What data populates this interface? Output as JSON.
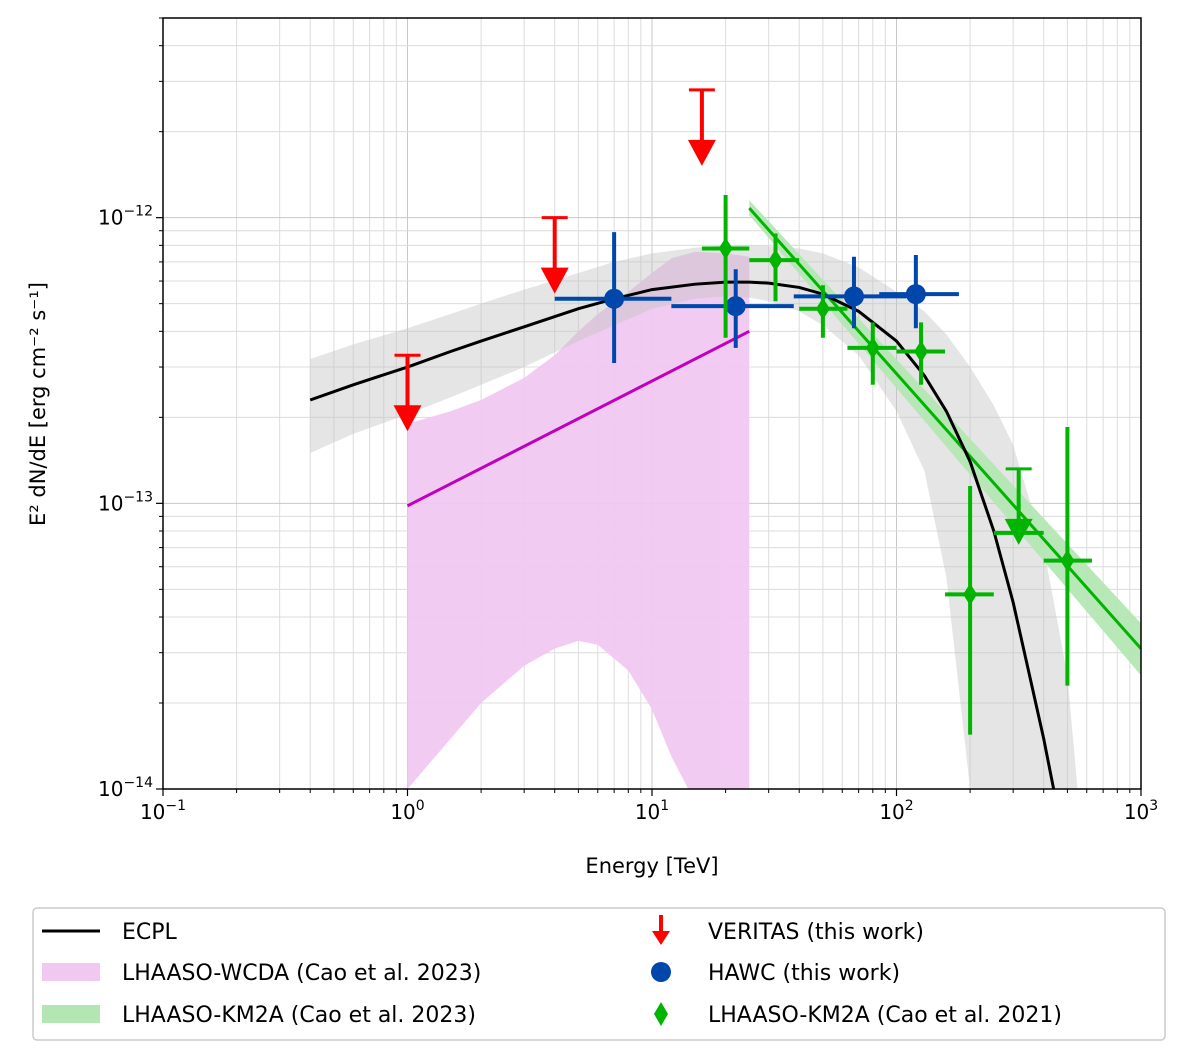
{
  "chart_data": {
    "type": "scatter",
    "title": "",
    "xlabel": "Energy [TeV]",
    "ylabel_text": "E² dN/dE [erg cm⁻² s⁻¹]",
    "xscale": "log",
    "yscale": "log",
    "xlim": [
      0.1,
      1000
    ],
    "ylim": [
      1e-14,
      5e-12
    ],
    "grid": true,
    "x_ticks": [
      {
        "value": 0.1,
        "base": "10",
        "exp": "−1"
      },
      {
        "value": 1,
        "base": "10",
        "exp": "0"
      },
      {
        "value": 10,
        "base": "10",
        "exp": "1"
      },
      {
        "value": 100,
        "base": "10",
        "exp": "2"
      },
      {
        "value": 1000,
        "base": "10",
        "exp": "3"
      }
    ],
    "y_ticks": [
      {
        "value": 1e-14,
        "base": "10",
        "exp": "−14"
      },
      {
        "value": 1e-13,
        "base": "10",
        "exp": "−13"
      },
      {
        "value": 1e-12,
        "base": "10",
        "exp": "−12"
      }
    ],
    "legend_location": "below",
    "series": [
      {
        "id": "ecpl",
        "name": "ECPL",
        "kind": "line",
        "color": "#000000",
        "x": [
          0.4,
          0.6,
          1,
          1.5,
          2,
          3,
          5,
          7,
          10,
          15,
          20,
          25,
          30,
          40,
          50,
          70,
          100,
          130,
          160,
          200,
          250,
          300,
          350,
          400,
          450
        ],
        "y": [
          2.3e-13,
          2.6e-13,
          3e-13,
          3.4e-13,
          3.7e-13,
          4.15e-13,
          4.8e-13,
          5.2e-13,
          5.6e-13,
          5.85e-13,
          5.95e-13,
          5.95e-13,
          5.9e-13,
          5.7e-13,
          5.4e-13,
          4.7e-13,
          3.7e-13,
          2.8e-13,
          2.1e-13,
          1.4e-13,
          8e-14,
          4.5e-14,
          2.5e-14,
          1.5e-14,
          9e-15
        ],
        "band_x": [
          0.4,
          0.6,
          1,
          1.5,
          2,
          3,
          5,
          7,
          10,
          15,
          20,
          25,
          30,
          40,
          50,
          70,
          100,
          130,
          160,
          200,
          250,
          300,
          400,
          500,
          550
        ],
        "band_lo": [
          1.5e-13,
          1.75e-13,
          2.05e-13,
          2.35e-13,
          2.6e-13,
          3e-13,
          3.7e-13,
          4.2e-13,
          4.8e-13,
          5.2e-13,
          5.3e-13,
          5.25e-13,
          5.1e-13,
          4.7e-13,
          4.2e-13,
          3.3e-13,
          2.1e-13,
          1.3e-13,
          5.5e-14,
          1e-14,
          9e-15,
          9e-15,
          9e-15,
          9e-15,
          9e-15
        ],
        "band_hi": [
          3.2e-13,
          3.6e-13,
          4.1e-13,
          4.6e-13,
          5e-13,
          5.6e-13,
          6.4e-13,
          7e-13,
          7.5e-13,
          7.85e-13,
          8e-13,
          8e-13,
          7.95e-13,
          7.8e-13,
          7.5e-13,
          6.7e-13,
          5.5e-13,
          4.7e-13,
          3.9e-13,
          3e-13,
          2.2e-13,
          1.6e-13,
          7e-14,
          2.5e-14,
          1e-14
        ]
      },
      {
        "id": "wcda",
        "name": "LHAASO-WCDA (Cao et al. 2023)",
        "kind": "line",
        "color": "#bf00bf",
        "band_color": "#f0c8f0",
        "x": [
          1,
          25
        ],
        "y": [
          9.8e-14,
          4e-13
        ],
        "band_x": [
          1,
          1.5,
          2,
          3,
          4,
          5,
          6,
          8,
          10,
          12,
          15,
          20,
          25
        ],
        "band_lo": [
          1e-14,
          1.5e-14,
          2e-14,
          2.7e-14,
          3.1e-14,
          3.3e-14,
          3.2e-14,
          2.6e-14,
          1.9e-14,
          1.3e-14,
          9e-15,
          9e-15,
          9e-15
        ],
        "band_hi": [
          1.9e-13,
          2.1e-13,
          2.3e-13,
          2.75e-13,
          3.3e-13,
          4e-13,
          4.6e-13,
          5.5e-13,
          6.4e-13,
          7.2e-13,
          7.6e-13,
          7.5e-13,
          7.3e-13
        ]
      },
      {
        "id": "km2a23",
        "name": "LHAASO-KM2A (Cao et al. 2023)",
        "kind": "line",
        "color": "#00b400",
        "band_color": "#b4e6b4",
        "x": [
          25,
          1000
        ],
        "y": [
          1.08e-12,
          3.1e-14
        ],
        "band_x": [
          25,
          1000
        ],
        "band_lo": [
          1.02e-12,
          2.5e-14
        ],
        "band_hi": [
          1.15e-12,
          3.8e-14
        ]
      },
      {
        "id": "veritas",
        "name": "VERITAS (this work)",
        "kind": "upper_limit",
        "color": "#ff0000",
        "points": [
          {
            "x": 1.0,
            "y": 3.3e-13
          },
          {
            "x": 4.0,
            "y": 1e-12
          },
          {
            "x": 16.0,
            "y": 2.8e-12
          }
        ]
      },
      {
        "id": "hawc",
        "name": "HAWC (this work)",
        "kind": "points",
        "marker": "circle",
        "color": "#0047ab",
        "points": [
          {
            "x": 7.0,
            "y": 5.2e-13,
            "xlo": 4.0,
            "xhi": 12.0,
            "ylo": 3.1e-13,
            "yhi": 8.9e-13
          },
          {
            "x": 22.0,
            "y": 4.9e-13,
            "xlo": 12.0,
            "xhi": 38.0,
            "ylo": 3.5e-13,
            "yhi": 6.6e-13
          },
          {
            "x": 67.0,
            "y": 5.3e-13,
            "xlo": 38.0,
            "xhi": 110.0,
            "ylo": 4.1e-13,
            "yhi": 7.3e-13
          },
          {
            "x": 120.0,
            "y": 5.4e-13,
            "xlo": 85.0,
            "xhi": 180.0,
            "ylo": 4.1e-13,
            "yhi": 7.4e-13
          }
        ]
      },
      {
        "id": "km2a21",
        "name": "LHAASO-KM2A (Cao et al. 2021)",
        "kind": "points",
        "marker": "diamond",
        "color": "#00b400",
        "points": [
          {
            "x": 20.0,
            "y": 7.8e-13,
            "xlo": 16.0,
            "xhi": 25.0,
            "ylo": 3.8e-13,
            "yhi": 1.2e-12
          },
          {
            "x": 32.0,
            "y": 7.1e-13,
            "xlo": 25.0,
            "xhi": 40.0,
            "ylo": 5.1e-13,
            "yhi": 8.8e-13
          },
          {
            "x": 50.0,
            "y": 4.8e-13,
            "xlo": 40.0,
            "xhi": 63.0,
            "ylo": 3.8e-13,
            "yhi": 5.8e-13
          },
          {
            "x": 80.0,
            "y": 3.5e-13,
            "xlo": 63.0,
            "xhi": 100.0,
            "ylo": 2.6e-13,
            "yhi": 4.3e-13
          },
          {
            "x": 126.0,
            "y": 3.4e-13,
            "xlo": 100.0,
            "xhi": 158.0,
            "ylo": 2.6e-13,
            "yhi": 4.3e-13
          },
          {
            "x": 200.0,
            "y": 4.8e-14,
            "xlo": 158.0,
            "xhi": 250.0,
            "ylo": 1.55e-14,
            "yhi": 1.15e-13
          },
          {
            "x": 500.0,
            "y": 6.3e-14,
            "xlo": 400.0,
            "xhi": 630.0,
            "ylo": 2.3e-14,
            "yhi": 1.85e-13
          }
        ],
        "upper_limits": [
          {
            "x": 316.0,
            "y": 1.32e-13,
            "xlo": 250.0,
            "xhi": 400.0
          }
        ]
      }
    ],
    "legend": [
      {
        "label": "ECPL",
        "style": "line",
        "color": "#000000"
      },
      {
        "label": "LHAASO-WCDA (Cao et al. 2023)",
        "style": "patch",
        "color": "#f0c8f0"
      },
      {
        "label": "LHAASO-KM2A (Cao et al. 2023)",
        "style": "patch",
        "color": "#b4e6b4"
      },
      {
        "label": "VERITAS (this work)",
        "style": "arrow",
        "color": "#ff0000"
      },
      {
        "label": "HAWC (this work)",
        "style": "circle",
        "color": "#0047ab"
      },
      {
        "label": "LHAASO-KM2A (Cao et al. 2021)",
        "style": "diamond",
        "color": "#00b400"
      }
    ]
  }
}
